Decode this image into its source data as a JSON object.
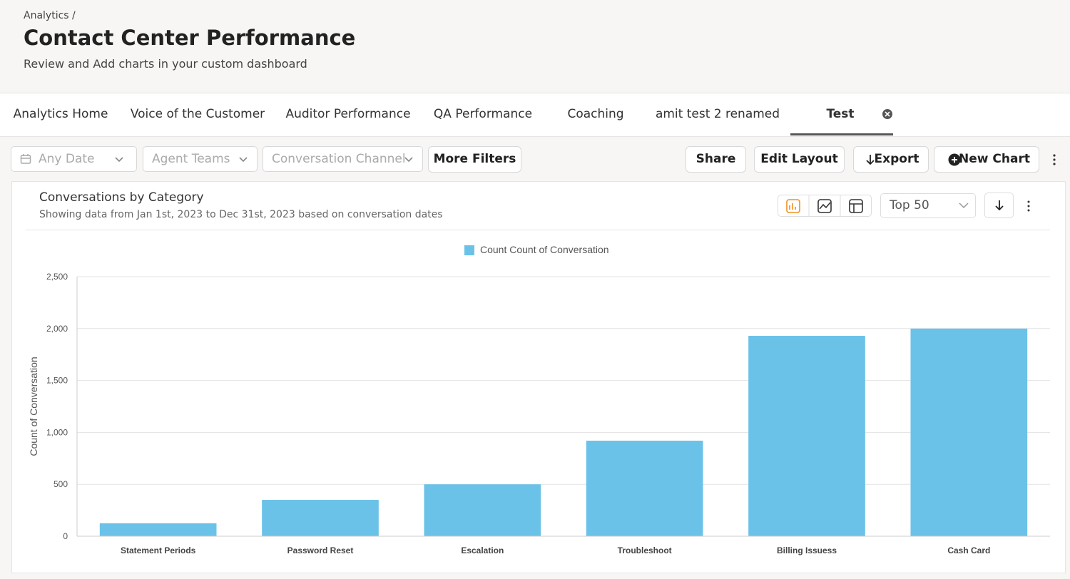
{
  "header": {
    "breadcrumb": "Analytics /",
    "title": "Contact Center Performance",
    "subtitle": "Review and Add charts in your custom dashboard"
  },
  "tabs": [
    "Analytics Home",
    "Voice of the Customer",
    "Auditor Performance",
    "QA Performance",
    "Coaching",
    "amit test 2 renamed",
    "Test"
  ],
  "filters": [
    "Any Date",
    "Agent Teams",
    "Conversation Channel"
  ],
  "more_filters": "More Filters",
  "actions": [
    "Share",
    "Edit Layout",
    "Export",
    "New Chart"
  ],
  "top_select": "Top 50",
  "chart_data": {
    "type": "bar",
    "title": "Conversations by Category",
    "subtitle": "Showing data from Jan 1st, 2023 to Dec 31st, 2023 based on conversation dates",
    "y_label": "Count of Conversation",
    "categories": [
      "Statement Periods",
      "Password Reset",
      "Escalation",
      "Troubleshoot",
      "Billing Issuess",
      "Cash Card"
    ],
    "series": [
      {
        "name": "Count Count of Conversation",
        "color": "#6bc2e8",
        "values": [
          125,
          350,
          500,
          920,
          1930,
          2000
        ]
      }
    ],
    "ylim": [
      0,
      2500
    ],
    "yticks": [
      0,
      500,
      {
        "value": 1000,
        "label": "1,000"
      },
      {
        "value": 1500,
        "label": "1,500"
      },
      {
        "value": 2000,
        "label": "2,000"
      },
      {
        "value": 2500,
        "label": "2,500"
      }
    ],
    "grid": true
  }
}
